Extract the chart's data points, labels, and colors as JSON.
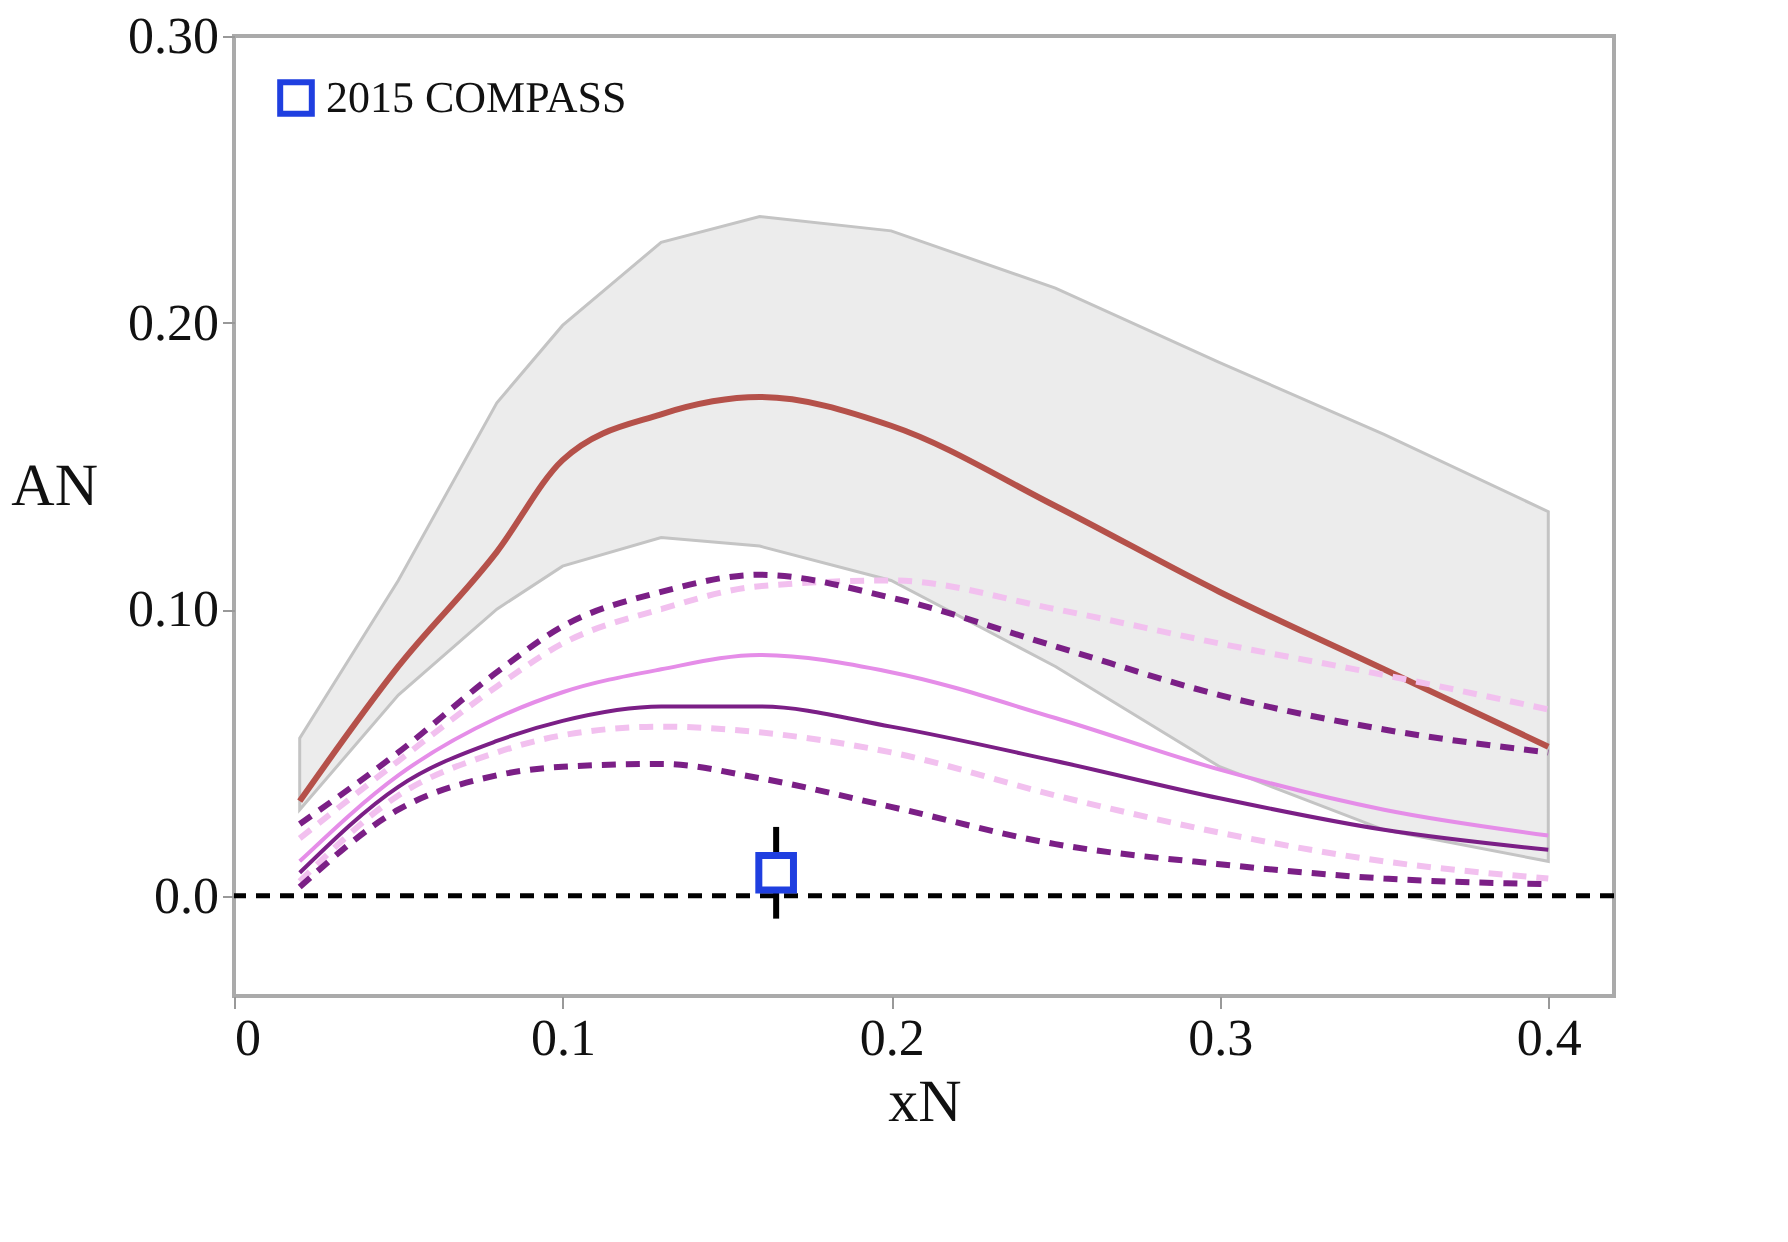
{
  "chart_data": {
    "type": "line",
    "xlabel": "xN",
    "ylabel": "AN",
    "x": [
      0.02,
      0.05,
      0.08,
      0.1,
      0.13,
      0.16,
      0.2,
      0.25,
      0.3,
      0.35,
      0.4
    ],
    "series": [
      {
        "color": "#b5514a",
        "line_style": "solid",
        "values": [
          0.033,
          0.08,
          0.12,
          0.152,
          0.168,
          0.174,
          0.164,
          0.136,
          0.106,
          0.079,
          0.052
        ],
        "lower": [
          0.03,
          0.07,
          0.1,
          0.115,
          0.125,
          0.122,
          0.11,
          0.08,
          0.045,
          0.023,
          0.012
        ],
        "upper": [
          0.055,
          0.11,
          0.172,
          0.199,
          0.228,
          0.237,
          0.232,
          0.212,
          0.186,
          0.161,
          0.134
        ]
      },
      {
        "color": "#f2c0ef",
        "line_style": "dashed",
        "values": [
          0.02,
          0.047,
          0.073,
          0.088,
          0.1,
          0.108,
          0.11,
          0.1,
          0.088,
          0.077,
          0.065
        ]
      },
      {
        "color": "#f2c0ef",
        "line_style": "dashed",
        "values": [
          0.005,
          0.035,
          0.05,
          0.056,
          0.059,
          0.057,
          0.05,
          0.035,
          0.022,
          0.012,
          0.006
        ]
      },
      {
        "color": "#7b1f86",
        "line_style": "dashed",
        "values": [
          0.025,
          0.05,
          0.078,
          0.094,
          0.106,
          0.112,
          0.104,
          0.087,
          0.07,
          0.058,
          0.05
        ]
      },
      {
        "color": "#7b1f86",
        "line_style": "dashed",
        "values": [
          0.003,
          0.03,
          0.042,
          0.045,
          0.046,
          0.041,
          0.031,
          0.018,
          0.011,
          0.006,
          0.004
        ]
      },
      {
        "color": "#e58de8",
        "line_style": "solid",
        "values": [
          0.012,
          0.042,
          0.062,
          0.071,
          0.079,
          0.084,
          0.078,
          0.062,
          0.044,
          0.03,
          0.021
        ]
      },
      {
        "color": "#7b1f86",
        "line_style": "solid",
        "values": [
          0.008,
          0.038,
          0.054,
          0.061,
          0.066,
          0.066,
          0.059,
          0.047,
          0.034,
          0.023,
          0.016
        ]
      },
      {
        "type": "scatter",
        "name": "2015 COMPASS",
        "color": "#1f3fe0",
        "marker": "square",
        "x": [
          0.165
        ],
        "values": [
          0.008
        ],
        "errors": [
          0.016
        ]
      }
    ],
    "ref_lines": [
      {
        "axis": "y",
        "value": 0,
        "color": "#000000",
        "line_style": "dashed"
      }
    ],
    "xlim": [
      0,
      0.42
    ],
    "ylim": [
      -0.035,
      0.3
    ],
    "xticks": [
      0,
      0.1,
      0.2,
      0.3,
      0.4
    ],
    "yticks": [
      {
        "value": 0,
        "label": "0.0"
      },
      {
        "value": 0.1,
        "label": "0.10"
      },
      {
        "value": 0.2,
        "label": "0.20"
      },
      {
        "value": 0.3,
        "label": "0.30"
      }
    ],
    "grid": false,
    "legend": "top left"
  }
}
